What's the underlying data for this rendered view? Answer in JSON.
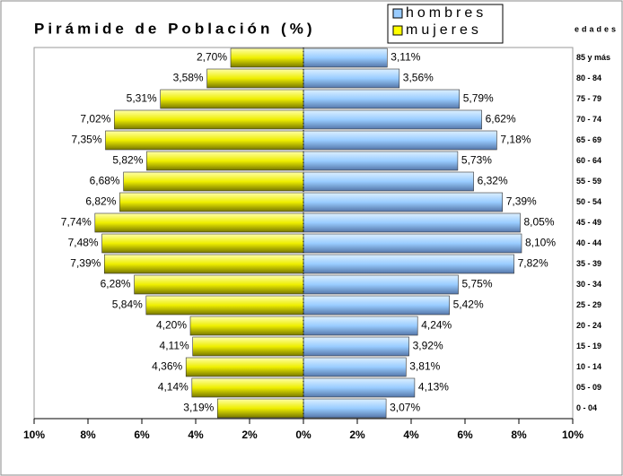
{
  "chart_data": {
    "type": "pyramid",
    "title": "Pirámide de Población (%)",
    "axis_title": "edades",
    "categories": [
      "85 y más",
      "80 - 84",
      "75 - 79",
      "70 - 74",
      "65 - 69",
      "60 - 64",
      "55 - 59",
      "50 - 54",
      "45 - 49",
      "40 - 44",
      "35 - 39",
      "30 - 34",
      "25 - 29",
      "20 - 24",
      "15 - 19",
      "10 - 14",
      "05 - 09",
      "0 - 04"
    ],
    "series": [
      {
        "name": "hombres",
        "color": "#99ccff",
        "values": [
          3.11,
          3.56,
          5.79,
          6.62,
          7.18,
          5.73,
          6.32,
          7.39,
          8.05,
          8.1,
          7.82,
          5.75,
          5.42,
          4.24,
          3.92,
          3.81,
          4.13,
          3.07
        ],
        "value_labels": [
          "3,11%",
          "3,56%",
          "5,79%",
          "6,62%",
          "7,18%",
          "5,73%",
          "6,32%",
          "7,39%",
          "8,05%",
          "8,10%",
          "7,82%",
          "5,75%",
          "5,42%",
          "4,24%",
          "3,92%",
          "3,81%",
          "4,13%",
          "3,07%"
        ]
      },
      {
        "name": "mujeres",
        "color": "#ffff00",
        "values": [
          2.7,
          3.58,
          5.31,
          7.02,
          7.35,
          5.82,
          6.68,
          6.82,
          7.74,
          7.48,
          7.39,
          6.28,
          5.84,
          4.2,
          4.11,
          4.36,
          4.14,
          3.19
        ],
        "value_labels": [
          "2,70%",
          "3,58%",
          "5,31%",
          "7,02%",
          "7,35%",
          "5,82%",
          "6,68%",
          "6,82%",
          "7,74%",
          "7,48%",
          "7,39%",
          "6,28%",
          "5,84%",
          "4,20%",
          "4,11%",
          "4,36%",
          "4,14%",
          "3,19%"
        ]
      }
    ],
    "xlim": [
      -10,
      10
    ],
    "xticks": [
      {
        "value": -10,
        "label": "10%"
      },
      {
        "value": -8,
        "label": "8%"
      },
      {
        "value": -6,
        "label": "6%"
      },
      {
        "value": -4,
        "label": "4%"
      },
      {
        "value": -2,
        "label": "2%"
      },
      {
        "value": 0,
        "label": "0%"
      },
      {
        "value": 2,
        "label": "2%"
      },
      {
        "value": 4,
        "label": "4%"
      },
      {
        "value": 6,
        "label": "6%"
      },
      {
        "value": 8,
        "label": "8%"
      },
      {
        "value": 10,
        "label": "10%"
      }
    ]
  }
}
